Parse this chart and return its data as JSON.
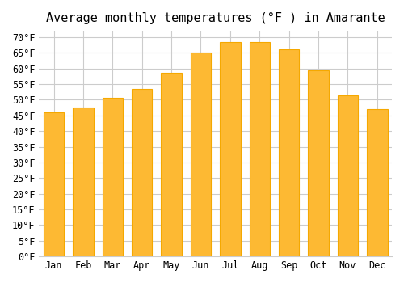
{
  "title": "Average monthly temperatures (°F ) in Amarante",
  "months": [
    "Jan",
    "Feb",
    "Mar",
    "Apr",
    "May",
    "Jun",
    "Jul",
    "Aug",
    "Sep",
    "Oct",
    "Nov",
    "Dec"
  ],
  "values": [
    46,
    47.5,
    50.5,
    53.5,
    58.5,
    65,
    68.5,
    68.5,
    66,
    59.5,
    51.5,
    47
  ],
  "bar_color": "#FDB933",
  "bar_edge_color": "#F5A800",
  "background_color": "#ffffff",
  "ylim": [
    0,
    72
  ],
  "yticks": [
    0,
    5,
    10,
    15,
    20,
    25,
    30,
    35,
    40,
    45,
    50,
    55,
    60,
    65,
    70
  ],
  "title_fontsize": 11,
  "tick_fontsize": 8.5,
  "grid_color": "#cccccc"
}
